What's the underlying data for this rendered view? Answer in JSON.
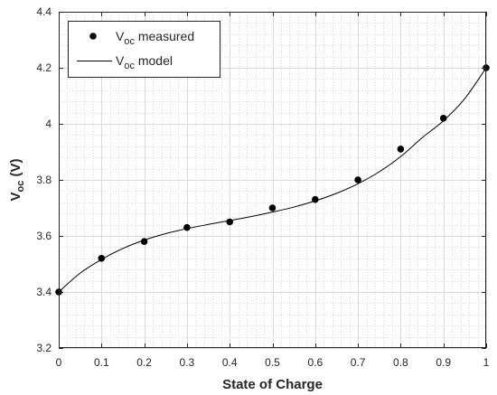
{
  "chart_data": {
    "type": "scatter",
    "xlabel": "State of Charge",
    "ylabel": {
      "main": "V",
      "subscript": "oc",
      "suffix": " (V)"
    },
    "xlim": [
      0,
      1
    ],
    "ylim": [
      3.2,
      4.4
    ],
    "x_ticks": [
      0,
      0.1,
      0.2,
      0.3,
      0.4,
      0.5,
      0.6,
      0.7,
      0.8,
      0.9,
      1
    ],
    "x_tick_labels": [
      "0",
      "0.1",
      "0.2",
      "0.3",
      "0.4",
      "0.5",
      "0.6",
      "0.7",
      "0.8",
      "0.9",
      "1"
    ],
    "y_ticks": [
      3.2,
      3.4,
      3.6,
      3.8,
      4.0,
      4.2,
      4.4
    ],
    "y_tick_labels": [
      "3.2",
      "3.4",
      "3.6",
      "3.8",
      "4",
      "4.2",
      "4.4"
    ],
    "grid": true,
    "minor_grid": true,
    "legend_position": "top-left",
    "series": [
      {
        "name": {
          "main": "V",
          "subscript": "oc",
          "suffix": " measured"
        },
        "style": "markers",
        "color": "#000000",
        "x": [
          0,
          0.1,
          0.2,
          0.3,
          0.4,
          0.5,
          0.6,
          0.7,
          0.8,
          0.9,
          1
        ],
        "y": [
          3.4,
          3.52,
          3.58,
          3.63,
          3.65,
          3.7,
          3.73,
          3.8,
          3.91,
          4.02,
          4.2
        ]
      },
      {
        "name": {
          "main": "V",
          "subscript": "oc",
          "suffix": " model"
        },
        "style": "line",
        "color": "#000000",
        "x": [
          0,
          0.05,
          0.1,
          0.15,
          0.2,
          0.25,
          0.3,
          0.35,
          0.4,
          0.45,
          0.5,
          0.55,
          0.6,
          0.65,
          0.7,
          0.75,
          0.8,
          0.85,
          0.9,
          0.95,
          1
        ],
        "y": [
          3.4,
          3.467,
          3.516,
          3.555,
          3.585,
          3.608,
          3.626,
          3.641,
          3.655,
          3.669,
          3.685,
          3.703,
          3.725,
          3.752,
          3.786,
          3.829,
          3.883,
          3.95,
          4.011,
          4.09,
          4.2
        ]
      }
    ]
  }
}
